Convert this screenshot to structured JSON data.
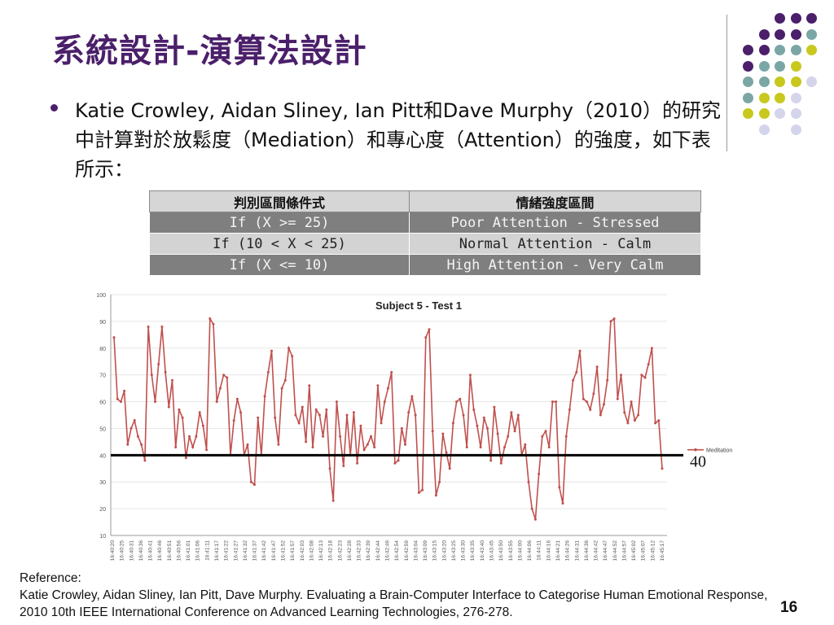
{
  "slide": {
    "title": "系統設計-演算法設計",
    "bullet": "Katie Crowley, Aidan Sliney, Ian Pitt和Dave Murphy（2010）的研究中計算對於放鬆度（Mediation）和專心度（Attention）的強度，如下表所示：",
    "page_number": "16"
  },
  "table": {
    "headers": [
      "判別區間條件式",
      "情緒強度區間"
    ],
    "rows": [
      [
        "If (X >= 25)",
        "Poor Attention - Stressed"
      ],
      [
        "If (10 < X < 25)",
        "Normal Attention - Calm"
      ],
      [
        "If (X <= 10)",
        "High Attention - Very Calm"
      ]
    ]
  },
  "threshold_label": "40",
  "reference": {
    "label": "Reference:",
    "text": "Katie Crowley, Aidan Sliney, Ian Pitt, Dave Murphy. Evaluating a Brain-Computer Interface to Categorise Human Emotional Response, 2010 10th IEEE International Conference on Advanced Learning Technologies, 276-278."
  },
  "decor_colors": {
    "purple": "#4b1f6a",
    "teal": "#7aa6a6",
    "yellow": "#c8c81e",
    "lavender": "#d4d4ea"
  },
  "chart_data": {
    "type": "line",
    "title": "Subject 5 - Test 1",
    "ylim": [
      10,
      100
    ],
    "yticks": [
      10,
      20,
      30,
      40,
      50,
      60,
      70,
      80,
      90,
      100
    ],
    "threshold": 40,
    "legend_position": "right",
    "series": [
      {
        "name": "Meditation",
        "color": "#c0504d",
        "values": [
          84,
          61,
          60,
          64,
          44,
          50,
          53,
          47,
          44,
          38,
          88,
          70,
          60,
          74,
          88,
          71,
          58,
          68,
          43,
          57,
          54,
          39,
          47,
          43,
          47,
          56,
          51,
          42,
          91,
          89,
          60,
          65,
          70,
          69,
          40,
          53,
          61,
          56,
          40,
          44,
          30,
          29,
          54,
          40,
          62,
          71,
          79,
          54,
          44,
          65,
          68,
          80,
          77,
          55,
          52,
          58,
          45,
          66,
          43,
          57,
          55,
          47,
          57,
          35,
          23,
          60,
          47,
          36,
          55,
          40,
          56,
          37,
          51,
          42,
          44,
          47,
          43,
          66,
          52,
          60,
          65,
          71,
          37,
          38,
          50,
          44,
          56,
          62,
          55,
          26,
          27,
          84,
          87,
          49,
          25,
          30,
          48,
          41,
          35,
          52,
          60,
          61,
          55,
          43,
          70,
          57,
          51,
          43,
          54,
          50,
          38,
          58,
          48,
          37,
          43,
          47,
          56,
          49,
          55,
          40,
          44,
          30,
          20,
          16,
          33,
          47,
          49,
          43,
          60,
          60,
          28,
          22,
          47,
          57,
          68,
          71,
          79,
          61,
          60,
          57,
          63,
          73,
          55,
          59,
          68,
          90,
          91,
          61,
          70,
          56,
          52,
          60,
          53,
          55,
          70,
          69,
          74,
          80,
          52,
          53,
          35
        ]
      }
    ],
    "x_ticks": [
      "16:40:20",
      "16:40:25",
      "16:40:31",
      "16:40:36",
      "16:40:41",
      "16:40:46",
      "16:40:51",
      "16:40:56",
      "16:41:01",
      "16:41:06",
      "16:41:11",
      "16:41:17",
      "16:41:22",
      "16:41:27",
      "16:41:32",
      "16:41:37",
      "16:41:42",
      "16:41:47",
      "16:41:52",
      "16:41:57",
      "16:42:03",
      "16:42:08",
      "16:42:13",
      "16:42:18",
      "16:42:23",
      "16:42:28",
      "16:42:33",
      "16:42:39",
      "16:42:44",
      "16:42:49",
      "16:42:54",
      "16:42:59",
      "16:43:04",
      "16:43:09",
      "16:43:15",
      "16:43:20",
      "16:43:25",
      "16:43:30",
      "16:43:35",
      "16:43:40",
      "16:43:45",
      "16:43:50",
      "16:43:55",
      "16:44:00",
      "16:44:06",
      "16:44:11",
      "16:44:16",
      "16:44:21",
      "16:44:26",
      "16:44:31",
      "16:44:36",
      "16:44:42",
      "16:44:47",
      "16:44:52",
      "16:44:57",
      "16:45:02",
      "16:45:07",
      "16:45:12",
      "16:45:17"
    ]
  }
}
